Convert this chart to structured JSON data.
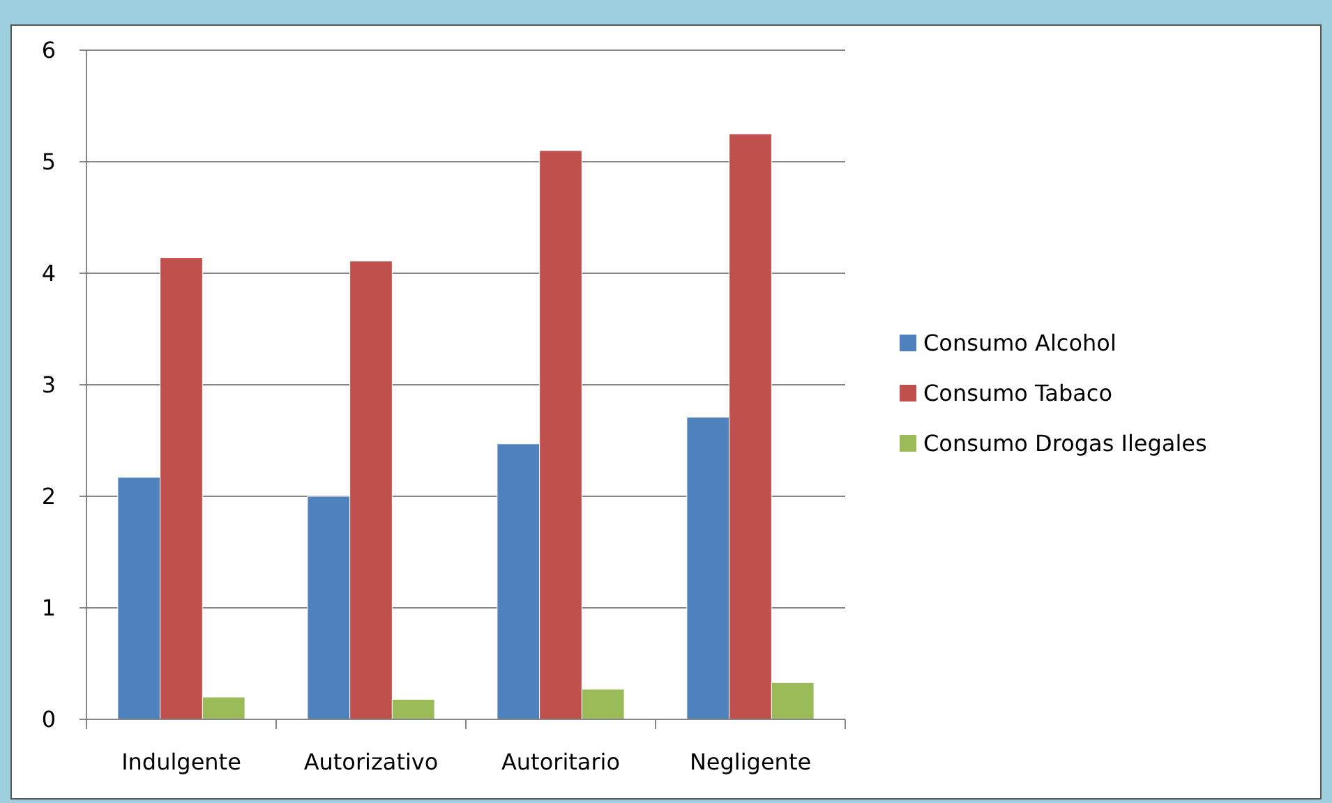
{
  "chart_data": {
    "type": "bar",
    "categories": [
      "Indulgente",
      "Autorizativo",
      "Autoritario",
      "Negligente"
    ],
    "series": [
      {
        "name": "Consumo Alcohol",
        "color": "#4f81bd",
        "values": [
          2.17,
          2.0,
          2.47,
          2.71
        ]
      },
      {
        "name": "Consumo Tabaco",
        "color": "#c0504d",
        "values": [
          4.14,
          4.11,
          5.1,
          5.25
        ]
      },
      {
        "name": "Consumo Drogas Ilegales",
        "color": "#9bbb59",
        "values": [
          0.2,
          0.18,
          0.27,
          0.33
        ]
      }
    ],
    "ylim": [
      0,
      6
    ],
    "yticks": [
      0,
      1,
      2,
      3,
      4,
      5,
      6
    ],
    "grid": "y",
    "legend": "right"
  }
}
